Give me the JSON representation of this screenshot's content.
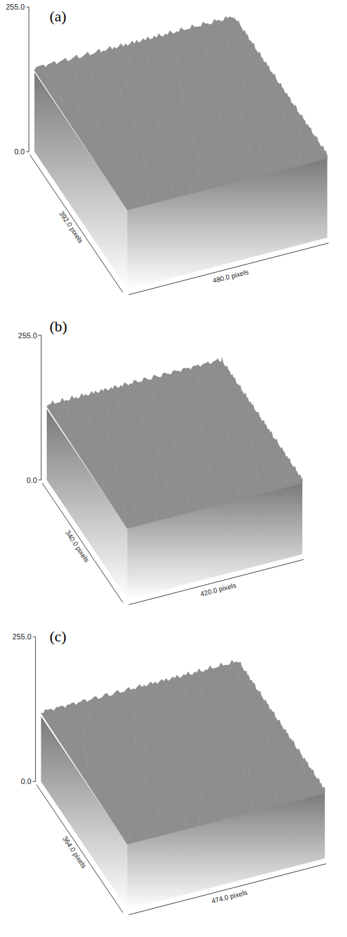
{
  "chart_data": [
    {
      "type": "surface",
      "title": "(a)",
      "x_label": "480.0 pixels",
      "y_label": "392.0 pixels",
      "xlim": [
        0,
        480
      ],
      "ylim": [
        0,
        392
      ],
      "zlim": [
        0,
        255
      ],
      "zticks": [
        {
          "value": 0,
          "label": "0.0"
        },
        {
          "value": 255,
          "label": "255.0"
        }
      ],
      "level": 140
    },
    {
      "type": "surface",
      "title": "(b)",
      "x_label": "420.0 pixels",
      "y_label": "340.0 pixels",
      "xlim": [
        0,
        420
      ],
      "ylim": [
        0,
        340
      ],
      "zlim": [
        0,
        255
      ],
      "zticks": [
        {
          "value": 0,
          "label": "0.0"
        },
        {
          "value": 255,
          "label": "255.0"
        }
      ],
      "level": 125
    },
    {
      "type": "surface",
      "title": "(c)",
      "x_label": "474.0 pixels",
      "y_label": "364.0 pixels",
      "xlim": [
        0,
        474
      ],
      "ylim": [
        0,
        364
      ],
      "zlim": [
        0,
        255
      ],
      "zticks": [
        {
          "value": 0,
          "label": "0.0"
        },
        {
          "value": 255,
          "label": "255.0"
        }
      ],
      "level": 115
    }
  ]
}
